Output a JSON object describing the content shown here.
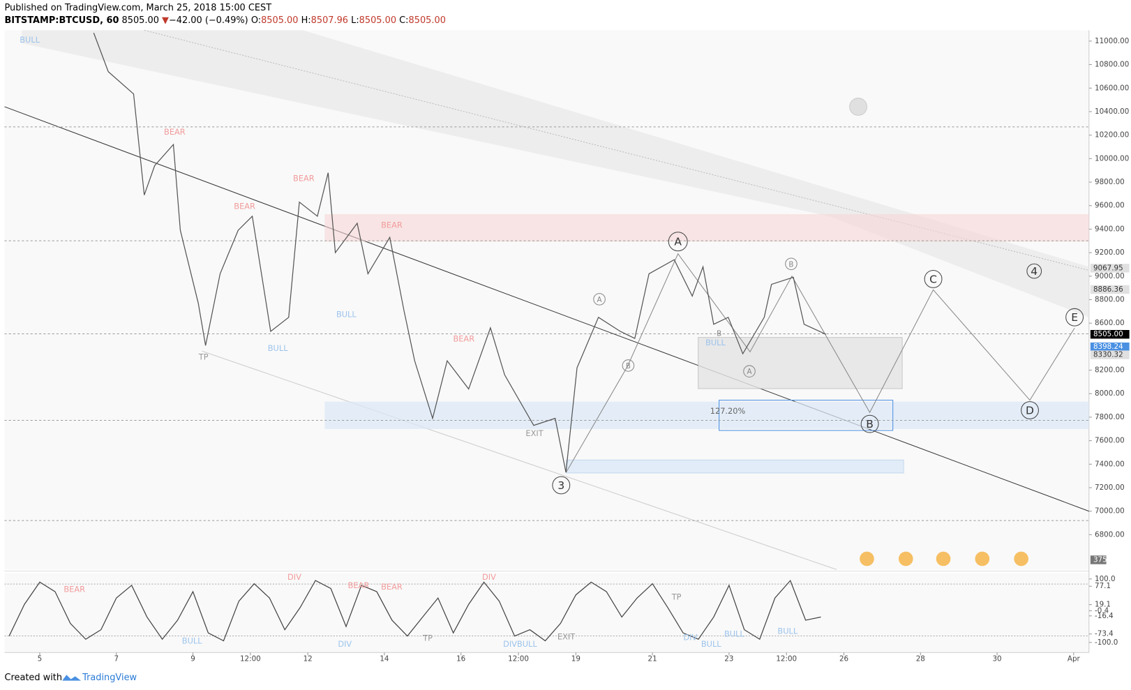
{
  "header": {
    "published": "Published on TradingView.com, March 25, 2018 15:00 CEST",
    "symbol": "BITSTAMP:BTCUSD, 60",
    "last": "8505.00",
    "arrow": "▼",
    "change": "−42.00 (−0.49%)",
    "o_label": "O:",
    "o": "8505.00",
    "h_label": "H:",
    "h": "8507.96",
    "l_label": "L:",
    "l": "8505.00",
    "c_label": "C:",
    "c": "8505.00"
  },
  "chart_data": {
    "type": "line",
    "color": "#555555",
    "x": [
      6.41,
      6.79,
      7.45,
      7.73,
      8.0,
      8.49,
      8.67,
      9.14,
      9.33,
      9.71,
      10.18,
      10.55,
      11.03,
      11.5,
      11.78,
      12.25,
      12.53,
      12.72,
      13.29,
      13.57,
      14.14,
      14.51,
      14.79,
      15.26,
      15.64,
      16.2,
      16.77,
      17.14,
      17.9,
      18.46,
      18.74,
      19.03,
      19.59,
      20.16,
      20.54,
      20.91,
      21.57,
      22.04,
      22.32,
      22.6,
      22.98,
      23.36,
      23.92,
      24.11,
      24.68,
      24.96,
      25.53
    ],
    "values": [
      11070,
      10740,
      10550,
      9690,
      9940,
      10120,
      9390,
      8770,
      8410,
      9020,
      9390,
      9510,
      8530,
      8650,
      9630,
      9510,
      9880,
      9200,
      9450,
      9020,
      9330,
      8710,
      8280,
      7790,
      8280,
      8040,
      8560,
      8160,
      7730,
      7790,
      7330,
      8220,
      8650,
      8530,
      8470,
      9020,
      9140,
      8830,
      9080,
      8590,
      8650,
      8340,
      8650,
      8930,
      8990,
      8590,
      8505
    ],
    "xlim": [
      4.08,
      32.4
    ],
    "xticks": [
      {
        "value": 5,
        "label": "5"
      },
      {
        "value": 7,
        "label": "7"
      },
      {
        "value": 9,
        "label": "9"
      },
      {
        "value": 10.5,
        "label": "12:00"
      },
      {
        "value": 12,
        "label": "12"
      },
      {
        "value": 14,
        "label": "14"
      },
      {
        "value": 16,
        "label": "16"
      },
      {
        "value": 17.5,
        "label": "12:00"
      },
      {
        "value": 19,
        "label": "19"
      },
      {
        "value": 21,
        "label": "21"
      },
      {
        "value": 23,
        "label": "23"
      },
      {
        "value": 24.5,
        "label": "12:00"
      },
      {
        "value": 26,
        "label": "26"
      },
      {
        "value": 28,
        "label": "28"
      },
      {
        "value": 30,
        "label": "30"
      },
      {
        "value": 32,
        "label": "Apr"
      }
    ],
    "ylim": [
      6500,
      11100
    ],
    "yticks": [
      {
        "value": 11000,
        "label": "11000.00"
      },
      {
        "value": 10800,
        "label": "10800.00"
      },
      {
        "value": 10600,
        "label": "10600.00"
      },
      {
        "value": 10400,
        "label": "10400.00"
      },
      {
        "value": 10200,
        "label": "10200.00"
      },
      {
        "value": 10000,
        "label": "10000.00"
      },
      {
        "value": 9800,
        "label": "9800.00"
      },
      {
        "value": 9600,
        "label": "9600.00"
      },
      {
        "value": 9400,
        "label": "9400.00"
      },
      {
        "value": 9200,
        "label": "9200.00"
      },
      {
        "value": 9000,
        "label": "9000.00"
      },
      {
        "value": 8800,
        "label": "8800.00"
      },
      {
        "value": 8600,
        "label": "8600.00"
      },
      {
        "value": 8200,
        "label": "8200.00"
      },
      {
        "value": 8000,
        "label": "8000.00"
      },
      {
        "value": 7800,
        "label": "7800.00"
      },
      {
        "value": 7600,
        "label": "7600.00"
      },
      {
        "value": 7400,
        "label": "7400.00"
      },
      {
        "value": 7200,
        "label": "7200.00"
      },
      {
        "value": 7000,
        "label": "7000.00"
      },
      {
        "value": 6800,
        "label": "6800.00"
      }
    ],
    "price_labels": [
      9067.95,
      8886.36,
      {
        "value": 8505,
        "label": "8505.00"
      },
      8398.24,
      8330.32
    ],
    "price_label_colors": [
      "#e0e0e0",
      "#e0e0e0",
      "#000000",
      "#4a90e2",
      "#e0e0e0"
    ],
    "waves": [
      "A",
      "B",
      "C",
      "D",
      "E",
      "4",
      "3",
      "A",
      "B",
      "A",
      "B",
      "B"
    ],
    "signals": [
      "BEAR",
      "BEAR",
      "BEAR",
      "BEAR",
      "BEAR",
      "BULL",
      "BULL",
      "BULL",
      "BULL",
      "EXIT",
      "TP",
      "127.20%"
    ],
    "volume_label": "375",
    "oscillator": {
      "color": "#444444",
      "x": [
        4.2,
        4.6,
        5.0,
        5.4,
        5.8,
        6.2,
        6.6,
        7.0,
        7.4,
        7.8,
        8.2,
        8.6,
        9.0,
        9.4,
        9.8,
        10.2,
        10.6,
        11.0,
        11.4,
        11.8,
        12.2,
        12.6,
        13.0,
        13.4,
        13.8,
        14.2,
        14.6,
        15.0,
        15.4,
        15.8,
        16.2,
        16.6,
        17.0,
        17.4,
        17.8,
        18.2,
        18.6,
        19.0,
        19.4,
        19.8,
        20.2,
        20.6,
        21.0,
        21.4,
        21.8,
        22.2,
        22.6,
        23.0,
        23.4,
        23.8,
        24.2,
        24.6,
        25.0,
        25.4
      ],
      "values": [
        -80,
        20,
        90,
        60,
        -40,
        -90,
        -60,
        40,
        80,
        -20,
        -90,
        -30,
        60,
        -70,
        -95,
        30,
        85,
        40,
        -60,
        10,
        95,
        70,
        -50,
        80,
        60,
        -30,
        -80,
        -20,
        40,
        -70,
        20,
        90,
        30,
        -80,
        -60,
        -95,
        -40,
        50,
        90,
        60,
        -20,
        40,
        85,
        10,
        -70,
        -90,
        -20,
        80,
        -60,
        -90,
        40,
        95,
        -30,
        -20
      ],
      "ylim": [
        -110,
        110
      ],
      "yticks": [
        {
          "value": 100,
          "label": "100.0"
        },
        77.1,
        19.1,
        -0.4,
        -16.4,
        -73.4,
        {
          "value": -100,
          "label": "-100.0"
        }
      ],
      "signals": [
        "BEAR",
        "DIV",
        "BEAR",
        "BEAR",
        "DIV",
        "BULL",
        "DIV",
        "TP",
        "DIVBULL",
        "EXIT",
        "TP",
        "DIV",
        "BULL",
        "BULL",
        "BULL"
      ]
    }
  },
  "footer": {
    "created": "Created with",
    "brand": "TradingView"
  }
}
